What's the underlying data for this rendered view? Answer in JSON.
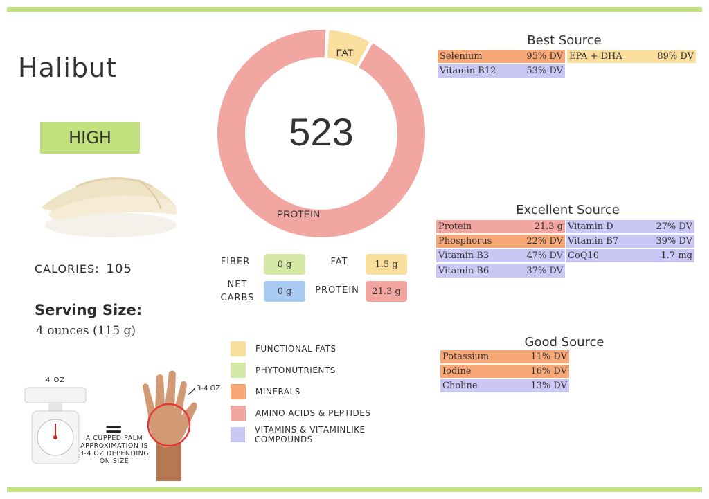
{
  "food": {
    "name": "Halibut",
    "density": "HIGH"
  },
  "calories": {
    "label": "CALORIES:",
    "value": "105"
  },
  "serving": {
    "label": "Serving Size:",
    "value": "4 ounces (115 g)"
  },
  "donut": {
    "center_value": "523",
    "segments": [
      {
        "name": "FAT",
        "share": 0.07,
        "color": "#f9de9d"
      },
      {
        "name": "PROTEIN",
        "share": 0.93,
        "color": "#f2a6a2"
      }
    ]
  },
  "macros": {
    "fiber": {
      "label": "FIBER",
      "value": "0 g"
    },
    "fat": {
      "label": "FAT",
      "value": "1.5 g"
    },
    "net_carbs": {
      "label": "NET CARBS",
      "value": "0 g"
    },
    "protein": {
      "label": "PROTEIN",
      "value": "21.3 g"
    }
  },
  "legend": [
    {
      "label": "FUNCTIONAL FATS",
      "color": "#f9de9d"
    },
    {
      "label": "PHYTONUTRIENTS",
      "color": "#d6e8a5"
    },
    {
      "label": "MINERALS",
      "color": "#f8a777"
    },
    {
      "label": "AMINO ACIDS & PEPTIDES",
      "color": "#f2a6a2"
    },
    {
      "label": "VITAMINS & VITAMINLIKE COMPOUNDS",
      "color": "#cbc7f5"
    }
  ],
  "portion": {
    "scale_label": "4 OZ",
    "hand_label": "3-4 OZ",
    "equals": "=",
    "note": "A CUPPED PALM APPROXIMATION IS 3-4 OZ DEPENDING ON SIZE"
  },
  "best_source": {
    "title": "Best Source",
    "rows": [
      {
        "name": "Selenium",
        "value": "95% DV",
        "cat": "orange"
      },
      {
        "name": "EPA + DHA",
        "value": "89% DV",
        "cat": "yellow"
      },
      {
        "name": "Vitamin B12",
        "value": "53% DV",
        "cat": "purple"
      }
    ]
  },
  "excellent_source": {
    "title": "Excellent Source",
    "rows": [
      {
        "name": "Protein",
        "value": "21.3 g",
        "cat": "pink"
      },
      {
        "name": "Vitamin D",
        "value": "27% DV",
        "cat": "purple"
      },
      {
        "name": "Phosphorus",
        "value": "22% DV",
        "cat": "orange"
      },
      {
        "name": "Vitamin B7",
        "value": "39% DV",
        "cat": "purple"
      },
      {
        "name": "Vitamin B3",
        "value": "47% DV",
        "cat": "purple"
      },
      {
        "name": "CoQ10",
        "value": "1.7 mg",
        "cat": "purple"
      },
      {
        "name": "Vitamin B6",
        "value": "37% DV",
        "cat": "purple"
      }
    ]
  },
  "good_source": {
    "title": "Good Source",
    "rows": [
      {
        "name": "Potassium",
        "value": "11% DV",
        "cat": "orange"
      },
      {
        "name": "Iodine",
        "value": "16% DV",
        "cat": "orange"
      },
      {
        "name": "Choline",
        "value": "13% DV",
        "cat": "purple"
      }
    ]
  }
}
